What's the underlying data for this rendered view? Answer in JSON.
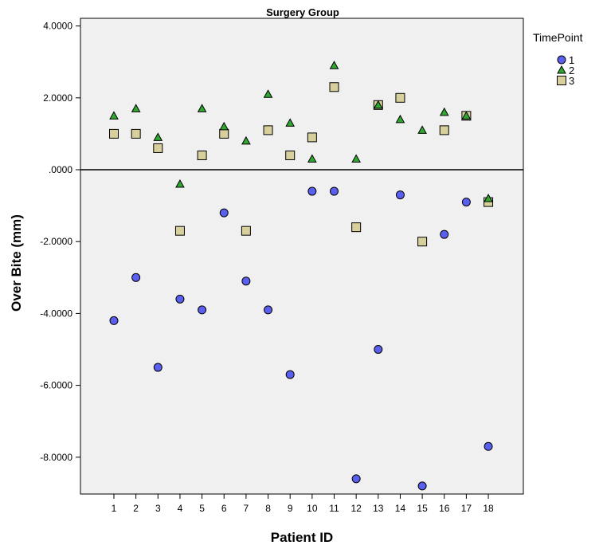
{
  "chart_data": {
    "type": "scatter",
    "title": "Surgery Group",
    "xlabel": "Patient ID",
    "ylabel": "Over Bite (mm)",
    "xlim": [
      0,
      19
    ],
    "ylim": [
      -9,
      4.2
    ],
    "x_ticks": [
      1,
      2,
      3,
      4,
      5,
      6,
      7,
      8,
      9,
      10,
      11,
      12,
      13,
      14,
      15,
      16,
      17,
      18
    ],
    "y_ticks": [
      4,
      2,
      0,
      -2,
      -4,
      -6,
      -8
    ],
    "y_tick_labels": [
      "4.0000",
      "2.0000",
      ".0000",
      "-2.0000",
      "-4.0000",
      "-6.0000",
      "-8.0000"
    ],
    "reference_line_y": 0,
    "grid": false,
    "plot_background": "#f0f0f0",
    "legend": {
      "title": "TimePoint",
      "position": "top-right"
    },
    "series": [
      {
        "name": "1",
        "marker": "circle",
        "color": "#5a5ff0",
        "x": [
          1,
          2,
          3,
          4,
          5,
          6,
          7,
          8,
          9,
          10,
          11,
          12,
          13,
          14,
          15,
          16,
          17,
          18
        ],
        "y": [
          -4.2,
          -3.0,
          -5.5,
          -3.6,
          -3.9,
          -1.2,
          -3.1,
          -3.9,
          -5.7,
          -0.6,
          -0.6,
          -8.6,
          -5.0,
          -0.7,
          -8.8,
          -1.8,
          -0.9,
          -7.7
        ]
      },
      {
        "name": "2",
        "marker": "triangle",
        "color": "#2ea82e",
        "x": [
          1,
          2,
          3,
          4,
          5,
          6,
          7,
          8,
          9,
          10,
          11,
          12,
          13,
          14,
          15,
          16,
          17,
          18
        ],
        "y": [
          1.5,
          1.7,
          0.9,
          -0.4,
          1.7,
          1.2,
          0.8,
          2.1,
          1.3,
          0.3,
          2.9,
          0.3,
          1.8,
          1.4,
          1.1,
          1.6,
          1.5,
          -0.8
        ]
      },
      {
        "name": "3",
        "marker": "square",
        "color": "#d7d09c",
        "x": [
          1,
          2,
          3,
          4,
          5,
          6,
          7,
          8,
          9,
          10,
          11,
          12,
          13,
          14,
          15,
          16,
          17,
          18
        ],
        "y": [
          1.0,
          1.0,
          0.6,
          -1.7,
          0.4,
          1.0,
          -1.7,
          1.1,
          0.4,
          0.9,
          2.3,
          -1.6,
          1.8,
          2.0,
          -2.0,
          1.1,
          1.5,
          -0.9
        ]
      }
    ]
  }
}
